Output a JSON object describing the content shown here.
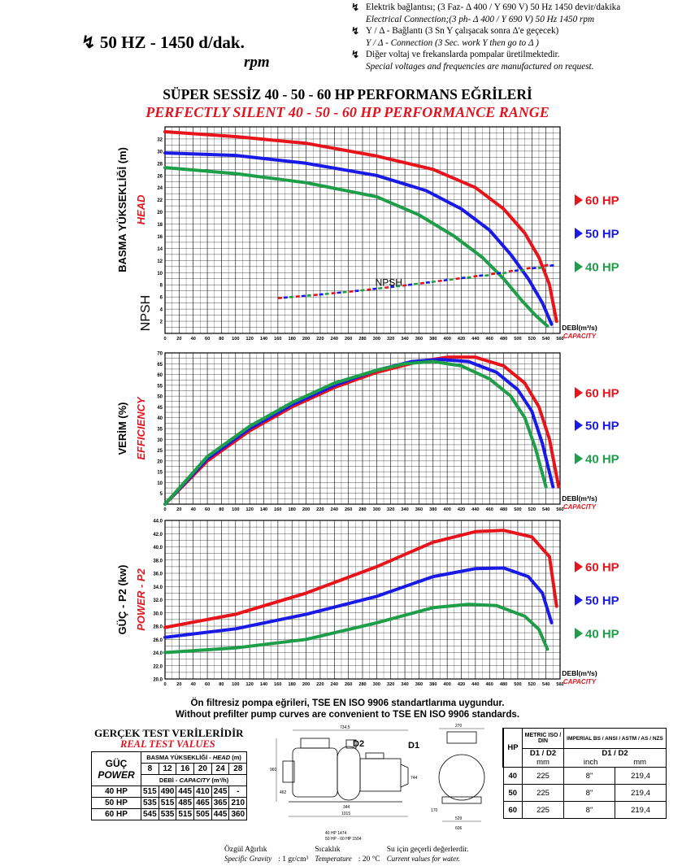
{
  "header": {
    "notes": [
      {
        "tr": "Elektrik bağlantısı; (3 Faz- Δ 400 / Y 690 V) 50 Hz 1450 devir/dakika",
        "en": "Electrical Connection;(3 ph- Δ 400 / Y 690 V) 50 Hz 1450 rpm"
      },
      {
        "tr": "Y / Δ - Bağlantı (3 Sn Y çalışacak sonra Δ'e geçecek)",
        "en": "Y / Δ - Connection (3 Sec. work Y then go to Δ )"
      },
      {
        "tr": "Diğer voltaj ve frekanslarda pompalar üretilmektedir.",
        "en": "Special voltages and frequencies are manufactured on request."
      }
    ],
    "speed": "50 HZ - 1450 d/dak.",
    "rpm": "rpm",
    "title_tr": "SÜPER SESSİZ 40 - 50 - 60 HP PERFORMANS EĞRİLERİ",
    "title_en": "PERFECTLY SILENT 40 - 50 - 60 HP PERFORMANCE RANGE"
  },
  "colors": {
    "hp60": "#e8141c",
    "hp50": "#1a1ae6",
    "hp40": "#1f9e4a"
  },
  "legend": [
    "60 HP",
    "50 HP",
    "40 HP"
  ],
  "xlabel_tr": "DEBİ(m³/s)",
  "xlabel_en": "CAPACITY",
  "chart_data": [
    {
      "type": "line",
      "name": "head",
      "ylabel_tr": "BASMA YÜKSEKLİĞİ (m)",
      "ylabel_en": "HEAD",
      "ylabel2": "NPSH",
      "annotation": "NPSH",
      "xlim": [
        0,
        560
      ],
      "ylim": [
        0,
        34
      ],
      "xticks": [
        0,
        20,
        40,
        60,
        80,
        100,
        120,
        140,
        160,
        180,
        200,
        220,
        240,
        260,
        280,
        300,
        320,
        340,
        360,
        380,
        400,
        420,
        440,
        460,
        480,
        500,
        520,
        540,
        560
      ],
      "yticks": [
        2,
        4,
        6,
        8,
        10,
        12,
        14,
        16,
        18,
        20,
        22,
        24,
        26,
        28,
        30,
        32
      ],
      "series": [
        {
          "name": "60 HP",
          "x": [
            0,
            100,
            200,
            300,
            380,
            440,
            480,
            510,
            530,
            545,
            555
          ],
          "y": [
            33.2,
            32.4,
            31.3,
            29.2,
            27,
            24,
            20.5,
            16.5,
            12.5,
            8,
            2
          ]
        },
        {
          "name": "50 HP",
          "x": [
            0,
            100,
            200,
            300,
            370,
            420,
            460,
            490,
            515,
            535,
            548
          ],
          "y": [
            29.7,
            29.3,
            28,
            26,
            23.5,
            20.5,
            17,
            13,
            9,
            5,
            1.5
          ]
        },
        {
          "name": "40 HP",
          "x": [
            0,
            100,
            200,
            300,
            360,
            410,
            450,
            480,
            505,
            525,
            542
          ],
          "y": [
            27.3,
            26.3,
            24.8,
            22.5,
            19.5,
            16,
            12.5,
            9,
            5.5,
            3,
            1.2
          ]
        },
        {
          "name": "NPSH 60 HP",
          "x": [
            160,
            220,
            280,
            340,
            400,
            460,
            520,
            560
          ],
          "y": [
            5.8,
            6.4,
            7.1,
            7.9,
            8.8,
            9.7,
            10.8,
            11.6
          ]
        },
        {
          "name": "NPSH 50 HP",
          "x": [
            160,
            220,
            280,
            340,
            400,
            460,
            520,
            555
          ],
          "y": [
            5.8,
            6.4,
            7.1,
            7.9,
            8.8,
            9.7,
            10.7,
            11.3
          ]
        },
        {
          "name": "NPSH 40 HP",
          "x": [
            160,
            220,
            280,
            340,
            400,
            460,
            520,
            550
          ],
          "y": [
            5.8,
            6.4,
            7.1,
            7.9,
            8.8,
            9.6,
            10.6,
            11.1
          ]
        }
      ]
    },
    {
      "type": "line",
      "name": "efficiency",
      "ylabel_tr": "VERİM (%)",
      "ylabel_en": "EFFICIENCY",
      "xlim": [
        0,
        560
      ],
      "ylim": [
        0,
        70
      ],
      "xticks": [
        0,
        20,
        40,
        60,
        80,
        100,
        120,
        140,
        160,
        180,
        200,
        220,
        240,
        260,
        280,
        300,
        320,
        340,
        360,
        380,
        400,
        420,
        440,
        460,
        480,
        500,
        520,
        540,
        560
      ],
      "yticks": [
        5,
        10,
        15,
        20,
        25,
        30,
        35,
        40,
        45,
        50,
        55,
        60,
        65,
        70
      ],
      "series": [
        {
          "name": "60 HP",
          "x": [
            0,
            60,
            120,
            180,
            240,
            300,
            360,
            400,
            440,
            480,
            510,
            530,
            545,
            558
          ],
          "y": [
            0,
            20,
            34,
            45,
            54,
            61,
            66,
            68,
            68,
            64,
            56,
            45,
            30,
            8
          ]
        },
        {
          "name": "50 HP",
          "x": [
            0,
            60,
            120,
            180,
            240,
            300,
            350,
            390,
            430,
            470,
            500,
            520,
            535,
            550
          ],
          "y": [
            0,
            21,
            35,
            46,
            55,
            62,
            66,
            67,
            66,
            61,
            53,
            43,
            28,
            8
          ]
        },
        {
          "name": "40 HP",
          "x": [
            0,
            60,
            120,
            180,
            240,
            300,
            340,
            380,
            420,
            460,
            490,
            510,
            525,
            540
          ],
          "y": [
            0,
            22,
            36,
            47,
            56,
            62,
            65,
            66,
            64,
            58,
            50,
            40,
            26,
            8
          ]
        }
      ]
    },
    {
      "type": "line",
      "name": "power",
      "ylabel_tr": "GÜÇ - P2 (kw)",
      "ylabel_en": "POWER - P2",
      "xlim": [
        0,
        560
      ],
      "ylim": [
        20,
        44
      ],
      "xticks": [
        0,
        20,
        40,
        60,
        80,
        100,
        120,
        140,
        160,
        180,
        200,
        220,
        240,
        260,
        280,
        300,
        320,
        340,
        360,
        380,
        400,
        420,
        440,
        460,
        480,
        500,
        520,
        540,
        560
      ],
      "yticks": [
        20.0,
        22.0,
        24.0,
        26.0,
        28.0,
        30.0,
        32.0,
        34.0,
        36.0,
        38.0,
        40.0,
        42.0,
        44.0
      ],
      "series": [
        {
          "name": "60 HP",
          "x": [
            0,
            100,
            200,
            300,
            380,
            440,
            480,
            520,
            545,
            555
          ],
          "y": [
            27.8,
            29.8,
            33,
            37,
            40.7,
            42.3,
            42.5,
            41.5,
            38.5,
            31
          ]
        },
        {
          "name": "50 HP",
          "x": [
            0,
            100,
            200,
            300,
            380,
            440,
            480,
            515,
            535,
            548
          ],
          "y": [
            26.3,
            27.6,
            29.8,
            32.5,
            35.5,
            36.7,
            36.8,
            35.5,
            33,
            28.5
          ]
        },
        {
          "name": "40 HP",
          "x": [
            0,
            100,
            200,
            300,
            380,
            430,
            470,
            510,
            530,
            542
          ],
          "y": [
            24,
            24.7,
            26,
            28.5,
            30.8,
            31.3,
            31.1,
            29.5,
            27.5,
            24.5
          ]
        }
      ]
    }
  ],
  "standard": {
    "tr": "Ön filtresiz pompa eğrileri, TSE EN ISO 9906 standartlarıma uygundur.",
    "en": "Without prefilter pump curves are convenient to TSE EN ISO 9906 standards."
  },
  "test_table": {
    "title_tr": "GERÇEK TEST VERİLERİDİR",
    "title_en": "REAL TEST VALUES",
    "corner_tr": "GÜÇ",
    "corner_en": "POWER",
    "head_label_tr": "BASMA YÜKSEKLİĞİ -",
    "head_label_en": "HEAD",
    "head_unit": "(m)",
    "cap_label_tr": "DEBİ -",
    "cap_label_en": "CAPACITY",
    "cap_unit": "(m³/h)",
    "heads": [
      "8",
      "12",
      "16",
      "20",
      "24",
      "28"
    ],
    "rows": [
      {
        "hp": "40 HP",
        "vals": [
          "515",
          "490",
          "445",
          "410",
          "245",
          "-"
        ]
      },
      {
        "hp": "50 HP",
        "vals": [
          "535",
          "515",
          "485",
          "465",
          "365",
          "210"
        ]
      },
      {
        "hp": "60 HP",
        "vals": [
          "545",
          "535",
          "515",
          "505",
          "445",
          "360"
        ]
      }
    ]
  },
  "drawing": {
    "labels": {
      "d2": "D2",
      "d1": "D1"
    },
    "dims": [
      "734,5",
      "960",
      "462",
      "1015",
      "344",
      "744",
      "40 HP 1474",
      "50 HP - 60 HP 1504",
      "270",
      "756",
      "529",
      "606",
      "170"
    ]
  },
  "dim_table": {
    "metric": "METRIC ISO / DIN",
    "imperial": "IMPERIAL BS / ANSI / ASTM / AS / NZS",
    "hp": "HP",
    "d1d2": "D1 / D2",
    "mm": "mm",
    "inch": "inch",
    "rows": [
      {
        "hp": "40",
        "metric": "225",
        "inch": "8\"",
        "mm": "219,4"
      },
      {
        "hp": "50",
        "metric": "225",
        "inch": "8\"",
        "mm": "219,4"
      },
      {
        "hp": "60",
        "metric": "225",
        "inch": "8\"",
        "mm": "219,4"
      }
    ]
  },
  "footer": {
    "sg_tr": "Özgül Ağırlık",
    "sg_en": "Specific Gravity",
    "sg_val": ": 1 gr/cm³",
    "temp_tr": "Sıcaklık",
    "temp_en": "Temperature",
    "temp_val": ": 20 °C",
    "water_tr": "Su için geçerli değerlerdir.",
    "water_en": "Current values for water."
  }
}
